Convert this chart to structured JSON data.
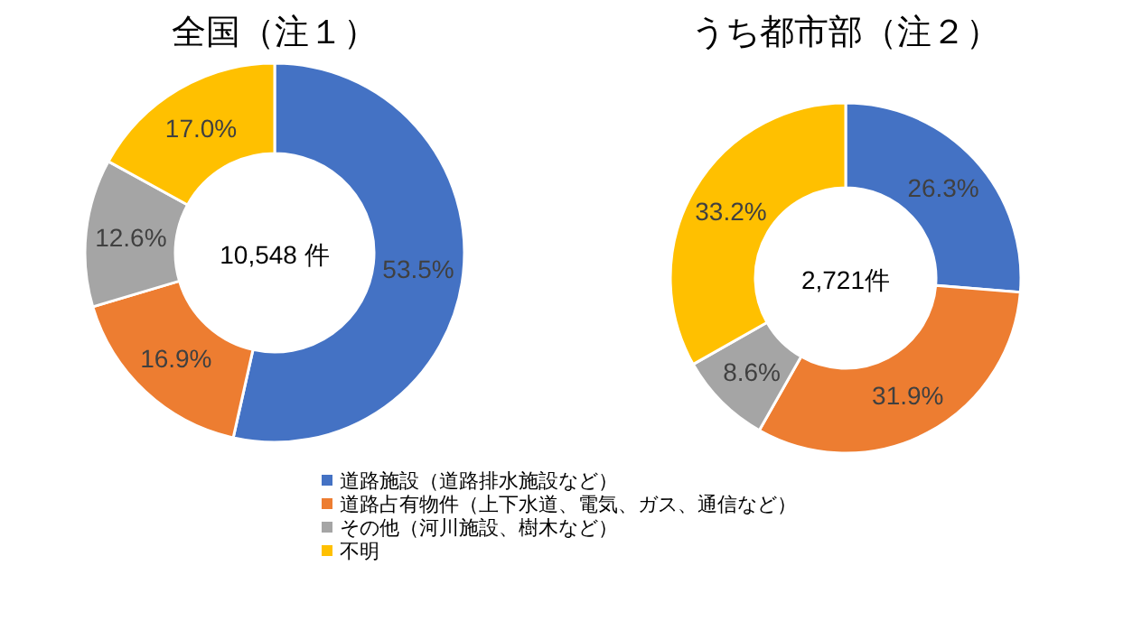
{
  "chart_data": [
    {
      "type": "donut",
      "title": "全国（注１）",
      "categories": [
        "道路施設（道路排水施設など）",
        "道路占有物件（上下水道、電気、ガス、通信など）",
        "その他（河川施設、樹木など）",
        "不明"
      ],
      "values": [
        53.5,
        16.9,
        12.6,
        17.0
      ],
      "value_labels": [
        "53.5%",
        "16.9%",
        "12.6%",
        "17.0%"
      ],
      "colors": [
        "#4472c4",
        "#ed7d31",
        "#a5a5a5",
        "#ffc000"
      ],
      "annotations": [
        "10,548 件"
      ],
      "legend": "bottom"
    },
    {
      "type": "donut",
      "title": "うち都市部（注２）",
      "categories": [
        null,
        null,
        null,
        null
      ],
      "values": [
        26.3,
        31.9,
        8.6,
        33.2
      ],
      "value_labels": [
        "26.3%",
        "31.9%",
        "8.6%",
        "33.2%"
      ],
      "colors": [
        "#4472c4",
        "#ed7d31",
        "#a5a5a5",
        "#ffc000"
      ],
      "annotations": [
        "2,721件"
      ]
    }
  ]
}
